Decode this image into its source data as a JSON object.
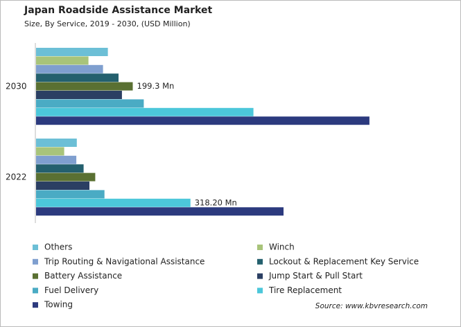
{
  "chart_data": {
    "type": "bar",
    "orientation": "horizontal",
    "title": "Japan Roadside Assistance Market",
    "subtitle": "Size, By Service, 2019 - 2030, (USD Million)",
    "source": "Source: www.kbvresearch.com",
    "categories": [
      "2030",
      "2022"
    ],
    "series": [
      {
        "name": "Others",
        "color": "#6cbfd6",
        "values": [
          148,
          84
        ]
      },
      {
        "name": "Winch",
        "color": "#a8c47a",
        "values": [
          108,
          58
        ]
      },
      {
        "name": "Trip Routing & Navigational Assistance",
        "color": "#7f9fcf",
        "values": [
          138,
          83
        ]
      },
      {
        "name": "Lockout & Replacement Key Service",
        "color": "#24606e",
        "values": [
          170,
          98
        ]
      },
      {
        "name": "Battery Assistance",
        "color": "#5a7032",
        "values": [
          199.3,
          122
        ],
        "value_labels": [
          "199.3 Mn",
          null
        ]
      },
      {
        "name": "Jump Start & Pull Start",
        "color": "#2b3f63",
        "values": [
          177,
          110
        ]
      },
      {
        "name": "Fuel Delivery",
        "color": "#4aabc4",
        "values": [
          222,
          141
        ]
      },
      {
        "name": "Tire Replacement",
        "color": "#4cc7da",
        "values": [
          448,
          318.2
        ],
        "value_labels": [
          null,
          "318.20 Mn"
        ]
      },
      {
        "name": "Towing",
        "color": "#2c3a7e",
        "values": [
          687,
          510
        ]
      }
    ]
  }
}
